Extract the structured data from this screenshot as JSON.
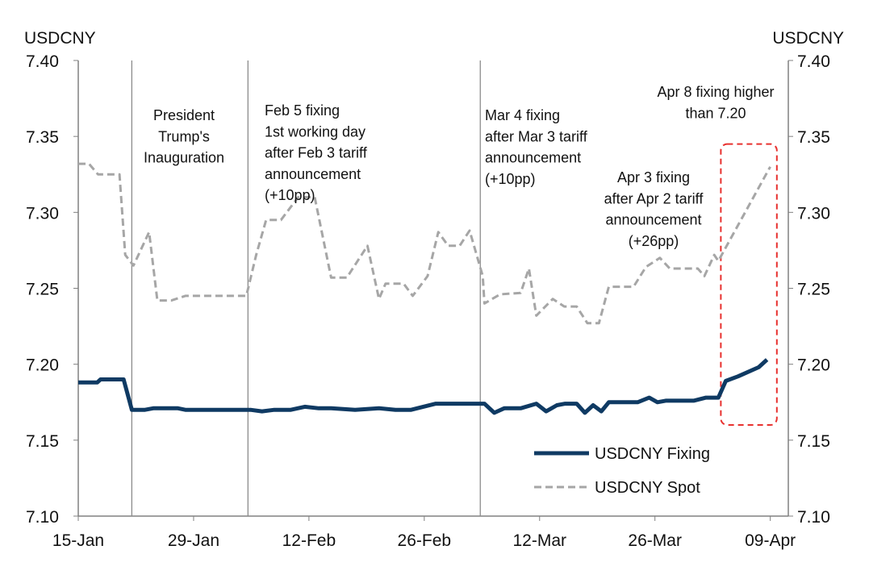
{
  "chart_data": {
    "type": "line",
    "title": "",
    "ylabel_left": "USDCNY",
    "ylabel_right": "USDCNY",
    "x_unit": "days since 15-Jan",
    "xlim": [
      0,
      84.8
    ],
    "x_ticks": [
      {
        "day": 0,
        "label": "15-Jan"
      },
      {
        "day": 14,
        "label": "29-Jan"
      },
      {
        "day": 28,
        "label": "12-Feb"
      },
      {
        "day": 42,
        "label": "26-Feb"
      },
      {
        "day": 56,
        "label": "12-Mar"
      },
      {
        "day": 70,
        "label": "26-Mar"
      },
      {
        "day": 84,
        "label": "09-Apr"
      }
    ],
    "ylim": [
      7.1,
      7.4
    ],
    "y_ticks": [
      "7.10",
      "7.15",
      "7.20",
      "7.25",
      "7.30",
      "7.35",
      "7.40"
    ],
    "grid": false,
    "legend_position": "bottom-right",
    "series": [
      {
        "name": "USDCNY Fixing",
        "style": "solid",
        "color": "#0f3a63",
        "x": [
          0,
          2.3,
          2.7,
          5.5,
          6.5,
          8.1,
          9.1,
          12.1,
          13,
          20.9,
          22.3,
          23.8,
          25.8,
          27.5,
          29.2,
          30.7,
          33.6,
          36.5,
          38.5,
          40.4,
          43.4,
          49.3,
          50.5,
          51.7,
          53.7,
          55.6,
          56.8,
          58.1,
          59.1,
          60.5,
          61.5,
          62.5,
          63.5,
          64.4,
          67.9,
          69.3,
          70.3,
          71.3,
          74.7,
          76.2,
          77.7,
          78.6,
          80.1,
          82.6,
          83.6
        ],
        "y": [
          7.188,
          7.188,
          7.19,
          7.19,
          7.17,
          7.17,
          7.171,
          7.171,
          7.17,
          7.17,
          7.169,
          7.17,
          7.17,
          7.172,
          7.171,
          7.171,
          7.17,
          7.171,
          7.17,
          7.17,
          7.174,
          7.174,
          7.168,
          7.171,
          7.171,
          7.174,
          7.169,
          7.173,
          7.174,
          7.174,
          7.168,
          7.173,
          7.169,
          7.175,
          7.175,
          7.178,
          7.175,
          7.176,
          7.176,
          7.178,
          7.178,
          7.189,
          7.192,
          7.198,
          7.203
        ]
      },
      {
        "name": "USDCNY Spot",
        "style": "dashed",
        "color": "#a6a6a6",
        "x": [
          0,
          1.3,
          2.4,
          5,
          5.7,
          6.7,
          8.6,
          9.6,
          11.3,
          13,
          20.4,
          21.6,
          22.8,
          24.6,
          26.7,
          28.7,
          30.7,
          32.6,
          35.1,
          36.5,
          37.3,
          39.5,
          40.6,
          42.4,
          43.7,
          44.9,
          46.3,
          47.5,
          49.1,
          49.3,
          51.2,
          53.7,
          54.7,
          55.6,
          57.6,
          59,
          60.5,
          61.8,
          63.2,
          64.4,
          67.4,
          68.9,
          70.6,
          71.8,
          75.2,
          76,
          77.2,
          77.7,
          84
        ],
        "y": [
          7.332,
          7.332,
          7.325,
          7.325,
          7.272,
          7.265,
          7.287,
          7.242,
          7.242,
          7.245,
          7.245,
          7.272,
          7.295,
          7.295,
          7.31,
          7.31,
          7.257,
          7.257,
          7.278,
          7.243,
          7.253,
          7.253,
          7.245,
          7.258,
          7.287,
          7.278,
          7.278,
          7.288,
          7.258,
          7.24,
          7.246,
          7.247,
          7.263,
          7.232,
          7.243,
          7.238,
          7.238,
          7.227,
          7.227,
          7.251,
          7.251,
          7.264,
          7.27,
          7.263,
          7.263,
          7.258,
          7.272,
          7.268,
          7.33
        ]
      }
    ],
    "event_lines": [
      6.5,
      20.6,
      48.8
    ],
    "highlight_box": {
      "x": [
        78,
        84.8
      ],
      "y": [
        7.16,
        7.345
      ],
      "color": "#e8312f"
    },
    "annotations": [
      {
        "id": "inauguration",
        "lines": [
          "President",
          "Trump's",
          "Inauguration"
        ]
      },
      {
        "id": "feb5",
        "lines": [
          "Feb 5 fixing",
          "1st working day",
          "after Feb 3 tariff",
          "announcement",
          "(+10pp)"
        ]
      },
      {
        "id": "mar4",
        "lines": [
          "Mar 4 fixing",
          "after Mar 3 tariff",
          "announcement",
          "(+10pp)"
        ]
      },
      {
        "id": "apr3",
        "lines": [
          "Apr 3 fixing",
          "after Apr 2 tariff",
          "announcement",
          "(+26pp)"
        ]
      },
      {
        "id": "apr8",
        "lines": [
          "Apr 8 fixing higher",
          "than 7.20"
        ]
      }
    ]
  }
}
